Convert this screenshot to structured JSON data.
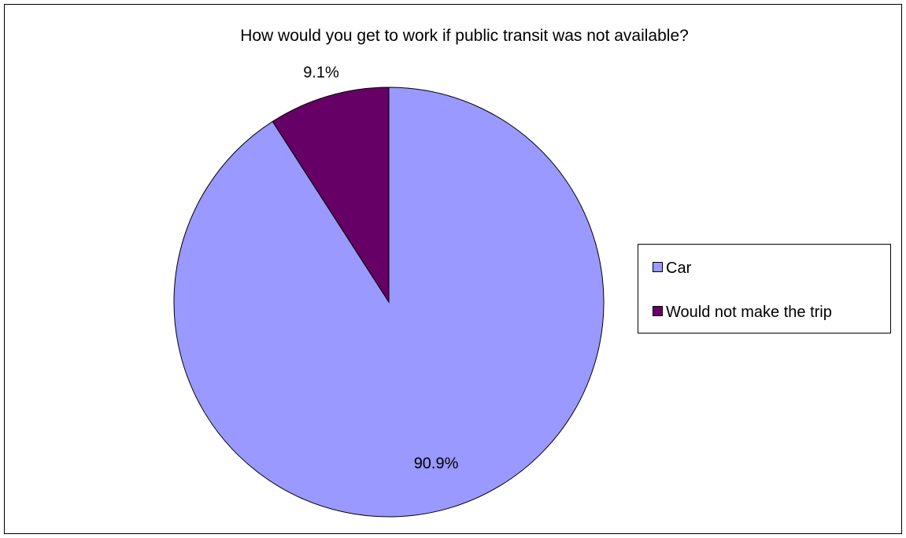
{
  "chart_data": {
    "type": "pie",
    "title": "How would you get to work if public transit was not available?",
    "categories": [
      "Car",
      "Would not make the trip"
    ],
    "values": [
      90.9,
      9.1
    ],
    "data_labels": [
      "90.9%",
      "9.1%"
    ],
    "colors": [
      "#9999ff",
      "#660066"
    ],
    "legend_position": "right",
    "grid": false
  }
}
